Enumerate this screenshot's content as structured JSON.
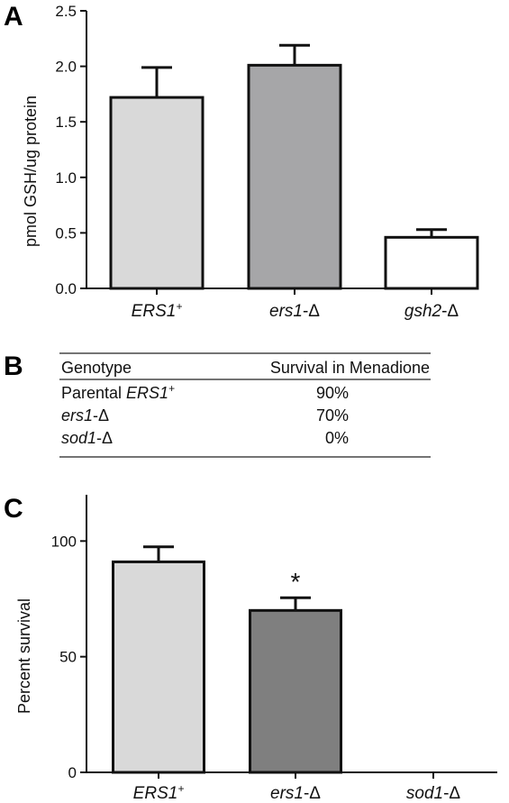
{
  "panel_A": {
    "letter": "A",
    "chart_data": {
      "type": "bar",
      "ylabel": "pmol GSH/ug protein",
      "ylim": [
        0,
        2.5
      ],
      "yticks": [
        "0.0",
        "0.5",
        "1.0",
        "1.5",
        "2.0",
        "2.5"
      ],
      "categories": [
        {
          "main": "ERS1",
          "sup": "+",
          "suffix": ""
        },
        {
          "main": "ers1",
          "sup": "",
          "suffix": "-Δ"
        },
        {
          "main": "gsh2",
          "sup": "",
          "suffix": "-Δ"
        }
      ],
      "values": [
        1.72,
        2.01,
        0.46
      ],
      "errors": [
        0.27,
        0.18,
        0.07
      ],
      "colors": [
        "#d9d9d9",
        "#a6a6a8",
        "#ffffff"
      ]
    }
  },
  "panel_B": {
    "letter": "B",
    "headers": {
      "genotype": "Genotype",
      "survival": "Survival in Menadione"
    },
    "rows": [
      {
        "plain": "Parental ",
        "italic": "ERS1",
        "sup": "+",
        "suffix": "",
        "value": "90%"
      },
      {
        "plain": "",
        "italic": "ers1",
        "sup": "",
        "suffix": "-Δ",
        "value": "70%"
      },
      {
        "plain": "",
        "italic": "sod1",
        "sup": "",
        "suffix": "-Δ",
        "value": "0%"
      }
    ]
  },
  "panel_C": {
    "letter": "C",
    "chart_data": {
      "type": "bar",
      "ylabel": "Percent survival",
      "ylim": [
        0,
        120
      ],
      "yticks": [
        "0",
        "50",
        "100"
      ],
      "categories": [
        {
          "main": "ERS1",
          "sup": "+",
          "suffix": ""
        },
        {
          "main": "ers1",
          "sup": "",
          "suffix": "-Δ"
        },
        {
          "main": "sod1",
          "sup": "",
          "suffix": "-Δ"
        }
      ],
      "values": [
        91,
        70,
        0
      ],
      "errors": [
        6.5,
        5.5,
        0
      ],
      "colors": [
        "#d9d9d9",
        "#7f7f7f",
        "#ffffff"
      ],
      "annotations": [
        {
          "category": "ers1",
          "text": "*"
        }
      ]
    }
  }
}
